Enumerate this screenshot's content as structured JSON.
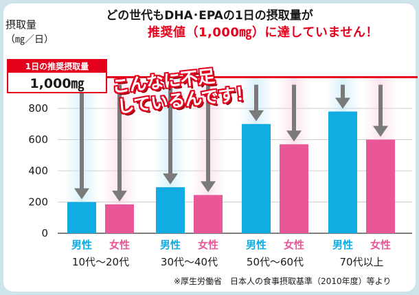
{
  "title": {
    "line1": "どの世代もDHA･EPAの1日の摂取量が",
    "line2": "推奨値（1,000㎎）に達していません！"
  },
  "recommended": {
    "label": "1日の推奨摂取量",
    "value": "1,000㎎"
  },
  "shortfall": {
    "line1": "こんなに不足",
    "line2": "しているんです！"
  },
  "source": "※厚生労働省　日本人の食事摂取基準（2010年度）等より",
  "colors": {
    "male": "#11ace2",
    "female": "#ea5798",
    "recommended_line": "#e5001c",
    "arrow": "#7a7a7a"
  },
  "chart_data": {
    "type": "bar",
    "ylabel": "摂取量",
    "yunit": "（㎎／日）",
    "ylim": [
      0,
      1000
    ],
    "yticks": [
      0,
      200,
      400,
      600,
      800
    ],
    "categories": [
      "10代～20代",
      "30代～40代",
      "50代～60代",
      "70代以上"
    ],
    "series": [
      {
        "name": "男性",
        "values": [
          200,
          295,
          700,
          780
        ]
      },
      {
        "name": "女性",
        "values": [
          185,
          245,
          570,
          600
        ]
      }
    ],
    "reference_line": {
      "label": "1日の推奨摂取量",
      "value": 1000
    }
  }
}
